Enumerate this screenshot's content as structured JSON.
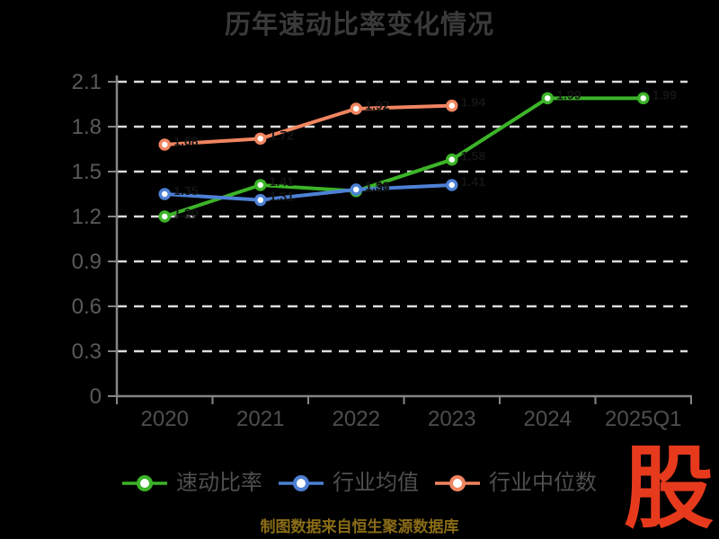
{
  "header": {
    "title": "历年速动比率变化情况"
  },
  "chart_data": {
    "type": "line",
    "title": "历年速动比率变化情况",
    "categories": [
      "2020",
      "2021",
      "2022",
      "2023",
      "2024",
      "2025Q1"
    ],
    "series": [
      {
        "key": "quick-ratio",
        "name": "速动比率",
        "color": "#3cb428",
        "values": [
          1.2,
          1.41,
          1.37,
          1.58,
          1.99,
          1.99
        ]
      },
      {
        "key": "industry-average",
        "name": "行业均值",
        "color": "#4d80d5",
        "values": [
          1.35,
          1.31,
          1.38,
          1.41,
          null,
          null
        ]
      },
      {
        "key": "industry-median",
        "name": "行业中位数",
        "color": "#f08560",
        "values": [
          1.68,
          1.72,
          1.92,
          1.94,
          null,
          null
        ]
      }
    ],
    "xlabel": "",
    "ylabel": "",
    "ylim": [
      0,
      2.1
    ],
    "yticks": [
      0,
      0.3,
      0.6,
      0.9,
      1.2,
      1.5,
      1.8,
      2.1
    ],
    "ytick_labels": [
      "0",
      "0.3",
      "0.6",
      "0.9",
      "1.2",
      "1.5",
      "1.8",
      "2.1"
    ],
    "grid": "horizontal-dashed",
    "legend_position": "bottom",
    "marker": "circle-white-fill-colored-ring"
  },
  "style": {
    "background": "#000000",
    "title_color": "#3a3a3a",
    "grid_color": "#dcdcdc",
    "axis_color": "#858585",
    "x_label_color": "#4e4e4e",
    "y_label_color": "#5a5a5a",
    "legend_text_color": "#4f4f4f",
    "point_fill": "#ffffff",
    "point_label_color": "#141414"
  },
  "footer": {
    "caption": "制图数据来自恒生聚源数据库",
    "caption_color": "#8a6c16"
  },
  "logo": {
    "text": "股",
    "color": "#e73a1d"
  }
}
